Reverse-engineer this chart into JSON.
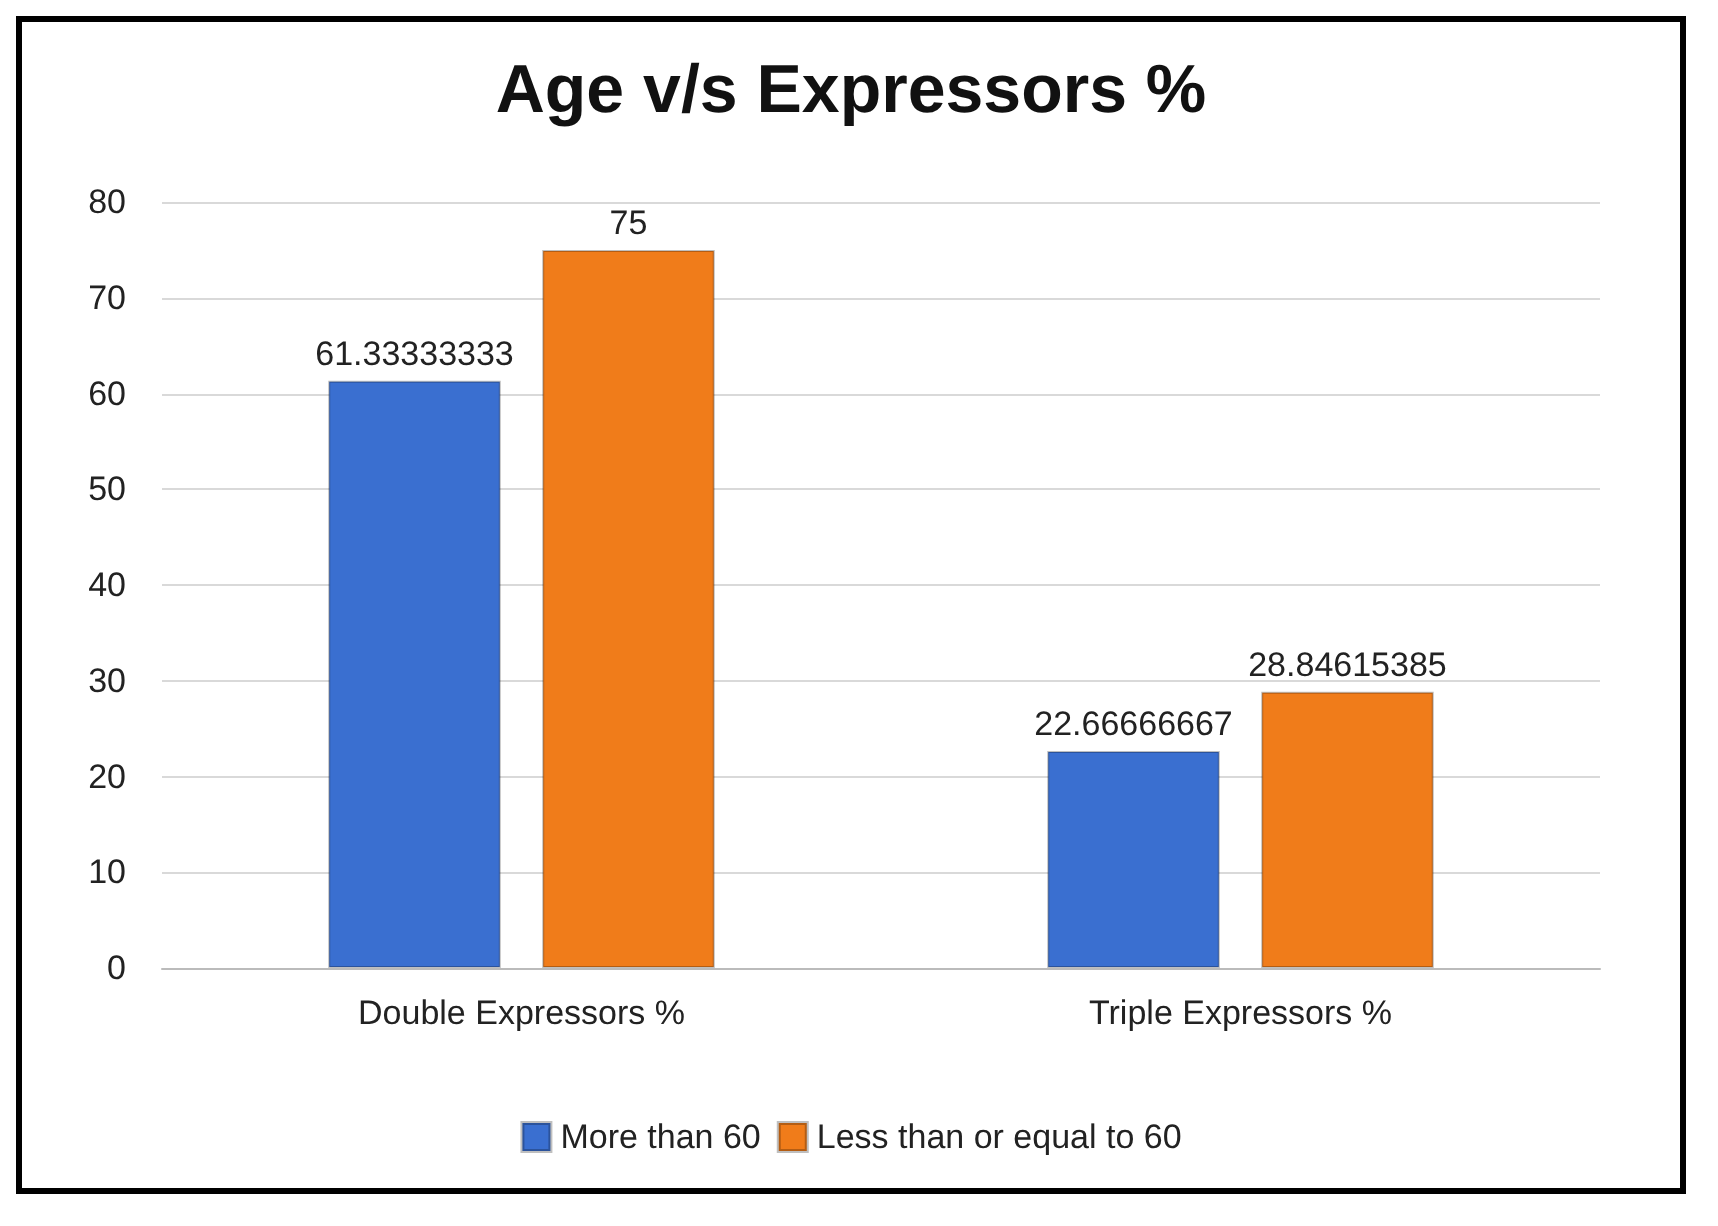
{
  "chart_data": {
    "type": "bar",
    "title": "Age v/s Expressors %",
    "categories": [
      "Double Expressors %",
      "Triple Expressors %"
    ],
    "series": [
      {
        "name": "More than 60",
        "color": "#3a6fd0",
        "values": [
          61.33333333,
          22.66666667
        ]
      },
      {
        "name": "Less than or equal to 60",
        "color": "#f07c1a",
        "values": [
          75,
          28.84615385
        ]
      }
    ],
    "ylim": [
      0,
      80
    ],
    "yticks": [
      0,
      10,
      20,
      30,
      40,
      50,
      60,
      70,
      80
    ],
    "grid": "y",
    "legend": "bottom",
    "data_labels": true
  }
}
